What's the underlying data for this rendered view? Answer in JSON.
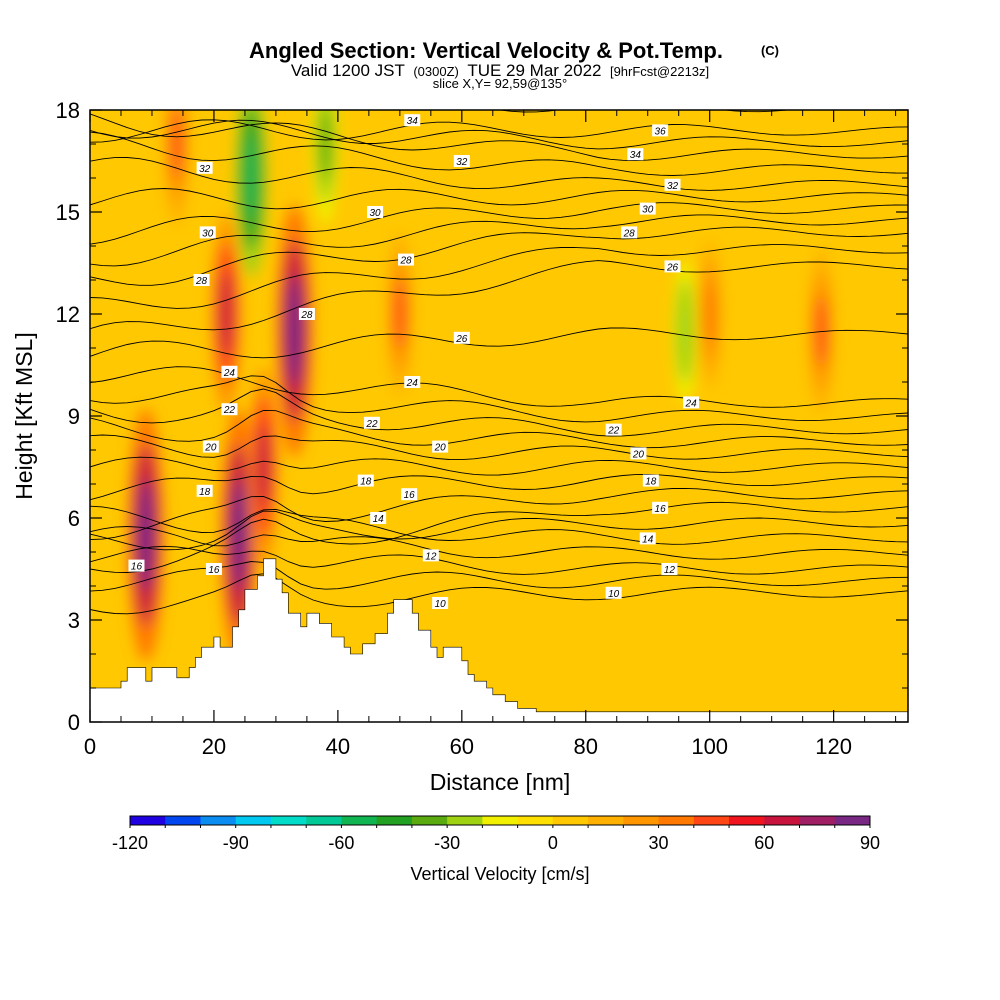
{
  "header": {
    "title_main": "Angled Section: Vertical Velocity & Pot.Temp.",
    "title_mark": "(C)",
    "line2_a": "Valid 1200 JST",
    "line2_b": "(0300Z)",
    "line2_c": "TUE 29 Mar 2022",
    "line2_d": "[9hrFcst@2213z]",
    "line3": "slice X,Y= 92,59@135°"
  },
  "chart_data": {
    "type": "heatmap",
    "title": "Angled Section: Vertical Velocity & Pot.Temp. (C)",
    "xlabel": "Distance [nm]",
    "ylabel": "Height [Kft MSL]",
    "xlim": [
      0,
      132
    ],
    "ylim": [
      0,
      18
    ],
    "xticks": [
      0,
      20,
      40,
      60,
      80,
      100,
      120
    ],
    "yticks": [
      0,
      3,
      6,
      9,
      12,
      15,
      18
    ],
    "xtick_labels": [
      "0",
      "20",
      "40",
      "60",
      "80",
      "100",
      "120"
    ],
    "ytick_labels": [
      "0",
      "3",
      "6",
      "9",
      "12",
      "15",
      "18"
    ],
    "grid": false,
    "colorbar": {
      "label": "Vertical Velocity [cm/s]",
      "min": -120,
      "max": 90,
      "step": 10,
      "tick_values": [
        -120,
        -90,
        -60,
        -30,
        0,
        30,
        60,
        90
      ],
      "tick_labels": [
        "-120",
        "-90",
        "-60",
        "-30",
        "0",
        "30",
        "60",
        "90"
      ],
      "colors": [
        "#1e00e0",
        "#0046f0",
        "#0a8cf0",
        "#00c8f0",
        "#00dcc8",
        "#00c896",
        "#10b450",
        "#22a022",
        "#5aaa10",
        "#a0d214",
        "#f0f000",
        "#ffe000",
        "#ffc800",
        "#ffb000",
        "#ff9600",
        "#ff7800",
        "#ff4614",
        "#f0141e",
        "#c8143c",
        "#a01e64",
        "#782882"
      ]
    },
    "vertical_velocity_features": [
      {
        "x": 9,
        "height_kft": 5.5,
        "value": 90
      },
      {
        "x": 14,
        "height_kft": 17,
        "value": 40
      },
      {
        "x": 22,
        "height_kft": 12,
        "value": 60
      },
      {
        "x": 24,
        "height_kft": 5.5,
        "value": 90
      },
      {
        "x": 26,
        "height_kft": 16,
        "value": -60
      },
      {
        "x": 28,
        "height_kft": 7.5,
        "value": 60
      },
      {
        "x": 33,
        "height_kft": 11.5,
        "value": 90
      },
      {
        "x": 38,
        "height_kft": 17,
        "value": -40
      },
      {
        "x": 50,
        "height_kft": 12,
        "value": 40
      },
      {
        "x": 96,
        "height_kft": 11.5,
        "value": -30
      },
      {
        "x": 100,
        "height_kft": 12,
        "value": 30
      },
      {
        "x": 118,
        "height_kft": 11.5,
        "value": 40
      }
    ],
    "pot_temp_contours": {
      "interval": 1,
      "labeled_values": [
        10,
        12,
        14,
        16,
        18,
        20,
        22,
        24,
        26,
        28,
        30,
        32,
        34,
        36
      ],
      "labels": [
        {
          "text": "36",
          "x": 92,
          "y": 17.4
        },
        {
          "text": "34",
          "x": 52,
          "y": 17.7
        },
        {
          "text": "34",
          "x": 88,
          "y": 16.7
        },
        {
          "text": "32",
          "x": 18.5,
          "y": 16.3
        },
        {
          "text": "32",
          "x": 60,
          "y": 16.5
        },
        {
          "text": "32",
          "x": 94,
          "y": 15.8
        },
        {
          "text": "30",
          "x": 46,
          "y": 15
        },
        {
          "text": "30",
          "x": 90,
          "y": 15.1
        },
        {
          "text": "30",
          "x": 19,
          "y": 14.4
        },
        {
          "text": "28",
          "x": 87,
          "y": 14.4
        },
        {
          "text": "28",
          "x": 51,
          "y": 13.6
        },
        {
          "text": "28",
          "x": 18,
          "y": 13
        },
        {
          "text": "28",
          "x": 35,
          "y": 12
        },
        {
          "text": "26",
          "x": 94,
          "y": 13.4
        },
        {
          "text": "26",
          "x": 60,
          "y": 11.3
        },
        {
          "text": "24",
          "x": 22.5,
          "y": 10.3
        },
        {
          "text": "24",
          "x": 52,
          "y": 10
        },
        {
          "text": "24",
          "x": 97,
          "y": 9.4
        },
        {
          "text": "22",
          "x": 22.5,
          "y": 9.2
        },
        {
          "text": "22",
          "x": 45.5,
          "y": 8.8
        },
        {
          "text": "22",
          "x": 84.5,
          "y": 8.6
        },
        {
          "text": "20",
          "x": 19.5,
          "y": 8.1
        },
        {
          "text": "20",
          "x": 56.5,
          "y": 8.1
        },
        {
          "text": "20",
          "x": 88.5,
          "y": 7.9
        },
        {
          "text": "18",
          "x": 18.5,
          "y": 6.8
        },
        {
          "text": "18",
          "x": 44.5,
          "y": 7.1
        },
        {
          "text": "18",
          "x": 90.5,
          "y": 7.1
        },
        {
          "text": "16",
          "x": 51.5,
          "y": 6.7
        },
        {
          "text": "16",
          "x": 92,
          "y": 6.3
        },
        {
          "text": "16",
          "x": 7.5,
          "y": 4.6
        },
        {
          "text": "16",
          "x": 20,
          "y": 4.5
        },
        {
          "text": "14",
          "x": 46.5,
          "y": 6
        },
        {
          "text": "14",
          "x": 90,
          "y": 5.4
        },
        {
          "text": "12",
          "x": 55,
          "y": 4.9
        },
        {
          "text": "12",
          "x": 93.5,
          "y": 4.5
        },
        {
          "text": "10",
          "x": 56.5,
          "y": 3.5
        },
        {
          "text": "10",
          "x": 84.5,
          "y": 3.8
        }
      ]
    },
    "terrain_profile": [
      [
        0,
        1
      ],
      [
        5,
        1
      ],
      [
        5,
        1.2
      ],
      [
        6,
        1.2
      ],
      [
        6,
        1.6
      ],
      [
        9,
        1.6
      ],
      [
        9,
        1.2
      ],
      [
        10,
        1.2
      ],
      [
        10,
        1.6
      ],
      [
        14,
        1.6
      ],
      [
        14,
        1.3
      ],
      [
        16,
        1.3
      ],
      [
        16,
        1.6
      ],
      [
        17,
        1.6
      ],
      [
        17,
        1.9
      ],
      [
        18,
        1.9
      ],
      [
        18,
        2.2
      ],
      [
        20,
        2.2
      ],
      [
        20,
        2.5
      ],
      [
        21,
        2.5
      ],
      [
        21,
        2.2
      ],
      [
        23,
        2.2
      ],
      [
        23,
        2.8
      ],
      [
        24,
        2.8
      ],
      [
        24,
        3.3
      ],
      [
        25,
        3.3
      ],
      [
        25,
        3.9
      ],
      [
        27,
        3.9
      ],
      [
        27,
        4.3
      ],
      [
        28,
        4.3
      ],
      [
        28,
        4.8
      ],
      [
        30,
        4.8
      ],
      [
        30,
        4.2
      ],
      [
        31,
        4.2
      ],
      [
        31,
        3.8
      ],
      [
        32,
        3.8
      ],
      [
        32,
        3.2
      ],
      [
        34,
        3.2
      ],
      [
        34,
        2.8
      ],
      [
        35,
        2.8
      ],
      [
        35,
        3.2
      ],
      [
        37,
        3.2
      ],
      [
        37,
        2.9
      ],
      [
        39,
        2.9
      ],
      [
        39,
        2.5
      ],
      [
        41,
        2.5
      ],
      [
        41,
        2.2
      ],
      [
        42,
        2.2
      ],
      [
        42,
        2
      ],
      [
        44,
        2
      ],
      [
        44,
        2.3
      ],
      [
        46,
        2.3
      ],
      [
        46,
        2.6
      ],
      [
        48,
        2.6
      ],
      [
        48,
        3.2
      ],
      [
        49,
        3.2
      ],
      [
        49,
        3.6
      ],
      [
        52,
        3.6
      ],
      [
        52,
        3.2
      ],
      [
        53,
        3.2
      ],
      [
        53,
        2.7
      ],
      [
        55,
        2.7
      ],
      [
        55,
        2.2
      ],
      [
        56,
        2.2
      ],
      [
        56,
        1.9
      ],
      [
        57,
        1.9
      ],
      [
        57,
        2.2
      ],
      [
        60,
        2.2
      ],
      [
        60,
        1.8
      ],
      [
        61,
        1.8
      ],
      [
        61,
        1.4
      ],
      [
        62,
        1.4
      ],
      [
        62,
        1.2
      ],
      [
        64,
        1.2
      ],
      [
        64,
        1
      ],
      [
        65,
        1
      ],
      [
        65,
        0.8
      ],
      [
        67,
        0.8
      ],
      [
        67,
        0.6
      ],
      [
        69,
        0.6
      ],
      [
        69,
        0.4
      ],
      [
        72,
        0.4
      ],
      [
        72,
        0.3
      ],
      [
        132,
        0.3
      ]
    ]
  }
}
